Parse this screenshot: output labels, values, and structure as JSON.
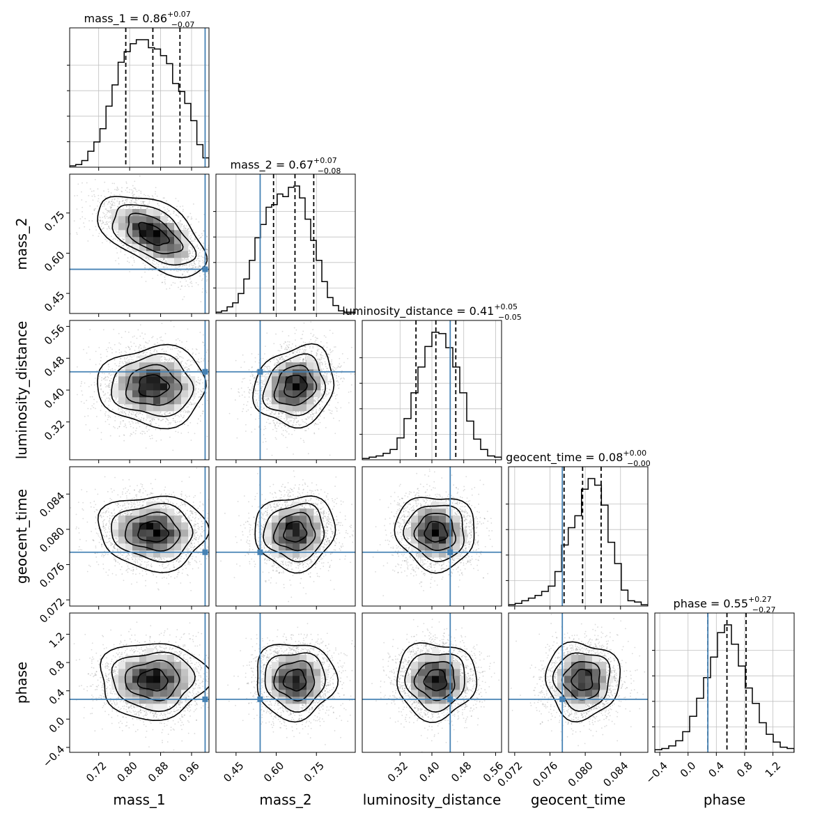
{
  "chart_data": {
    "type": "corner",
    "parameters": [
      {
        "name": "mass_1",
        "axis_label": "mass_1",
        "range": [
          0.645,
          1.005
        ],
        "ticks": [
          0.72,
          0.8,
          0.88,
          0.96
        ],
        "tick_labels": [
          "0.72",
          "0.80",
          "0.88",
          "0.96"
        ],
        "truth": 0.995,
        "title": {
          "prefix": "mass_1 = 0.86",
          "sup": "+0.07",
          "sub": "−0.07"
        },
        "median": 0.86,
        "q_low": 0.79,
        "q_high": 0.93,
        "hist_counts": [
          0.01,
          0.02,
          0.05,
          0.12,
          0.19,
          0.29,
          0.46,
          0.62,
          0.79,
          0.87,
          0.93,
          0.96,
          0.96,
          0.9,
          0.89,
          0.84,
          0.78,
          0.63,
          0.57,
          0.48,
          0.35,
          0.17,
          0.07
        ]
      },
      {
        "name": "mass_2",
        "axis_label": "mass_2",
        "range": [
          0.375,
          0.895
        ],
        "ticks": [
          0.45,
          0.6,
          0.75
        ],
        "tick_labels": [
          "0.45",
          "0.60",
          "0.75"
        ],
        "truth": 0.54,
        "title": {
          "prefix": "mass_2 = 0.67",
          "sup": "+0.07",
          "sub": "−0.08"
        },
        "median": 0.67,
        "q_low": 0.59,
        "q_high": 0.74,
        "hist_counts": [
          0.01,
          0.02,
          0.05,
          0.08,
          0.15,
          0.26,
          0.4,
          0.57,
          0.67,
          0.8,
          0.82,
          0.9,
          0.88,
          0.95,
          0.96,
          0.87,
          0.71,
          0.55,
          0.4,
          0.24,
          0.12,
          0.06,
          0.02,
          0.01,
          0.01
        ]
      },
      {
        "name": "luminosity_distance",
        "axis_label": "luminosity_distance",
        "range": [
          0.225,
          0.575
        ],
        "ticks": [
          0.32,
          0.4,
          0.48,
          0.56
        ],
        "tick_labels": [
          "0.32",
          "0.40",
          "0.48",
          "0.56"
        ],
        "truth": 0.446,
        "title": {
          "prefix": "luminosity_distance = 0.41",
          "sup": "+0.05",
          "sub": "−0.05"
        },
        "median": 0.41,
        "q_low": 0.36,
        "q_high": 0.46,
        "hist_counts": [
          0.01,
          0.02,
          0.03,
          0.05,
          0.08,
          0.17,
          0.32,
          0.52,
          0.72,
          0.88,
          0.99,
          0.98,
          0.87,
          0.72,
          0.52,
          0.3,
          0.16,
          0.08,
          0.03,
          0.02
        ]
      },
      {
        "name": "geocent_time",
        "axis_label": "geocent_time",
        "range": [
          0.0713,
          0.0871
        ],
        "ticks": [
          0.072,
          0.076,
          0.08,
          0.084
        ],
        "tick_labels": [
          "0.072",
          "0.076",
          "0.080",
          "0.084"
        ],
        "truth": 0.0774,
        "title": {
          "prefix": "geocent_time = 0.08",
          "sup": "+0.00",
          "sub": "−0.00"
        },
        "median": 0.0797,
        "q_low": 0.0776,
        "q_high": 0.0818,
        "hist_counts": [
          0.01,
          0.02,
          0.04,
          0.06,
          0.08,
          0.11,
          0.15,
          0.26,
          0.46,
          0.59,
          0.68,
          0.88,
          0.96,
          0.91,
          0.76,
          0.48,
          0.32,
          0.12,
          0.04,
          0.03,
          0.01
        ]
      },
      {
        "name": "phase",
        "axis_label": "phase",
        "range": [
          -0.47,
          1.5
        ],
        "ticks": [
          -0.4,
          0.0,
          0.4,
          0.8,
          1.2
        ],
        "tick_labels": [
          "−0.4",
          "0.0",
          "0.4",
          "0.8",
          "1.2"
        ],
        "truth": 0.28,
        "title": {
          "prefix": "phase = 0.55",
          "sup": "+0.27",
          "sub": "−0.27"
        },
        "median": 0.55,
        "q_low": 0.28,
        "q_high": 0.82,
        "hist_counts": [
          0.02,
          0.03,
          0.05,
          0.09,
          0.16,
          0.28,
          0.42,
          0.58,
          0.74,
          0.93,
          0.99,
          0.84,
          0.67,
          0.5,
          0.38,
          0.23,
          0.14,
          0.08,
          0.04,
          0.03
        ]
      }
    ],
    "correlations": {
      "1,0": -0.55,
      "2,0": 0.0,
      "2,1": 0.15,
      "3,0": -0.05,
      "3,1": 0.05,
      "3,2": -0.05,
      "4,0": 0.0,
      "4,1": 0.0,
      "4,2": 0.0,
      "4,3": 0.0
    },
    "style": {
      "truth_color": "#4682b4",
      "contour_color": "#000000",
      "grid_color": "#c0c0c0",
      "density_colormap": "greys"
    },
    "grid": true
  }
}
